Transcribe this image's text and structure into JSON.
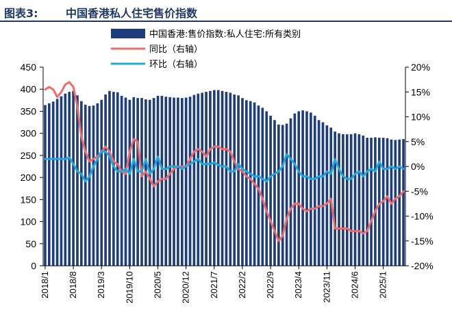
{
  "figure": {
    "label": "图表3:",
    "title": "中国香港私人住宅售价指数"
  },
  "chart_data": {
    "type": "bar",
    "x": [
      "2018/1",
      "2018/2",
      "2018/3",
      "2018/4",
      "2018/5",
      "2018/6",
      "2018/7",
      "2018/8",
      "2018/9",
      "2018/10",
      "2018/11",
      "2018/12",
      "2019/1",
      "2019/2",
      "2019/3",
      "2019/4",
      "2019/5",
      "2019/6",
      "2019/7",
      "2019/8",
      "2019/9",
      "2019/10",
      "2019/11",
      "2019/12",
      "2020/1",
      "2020/2",
      "2020/3",
      "2020/4",
      "2020/5",
      "2020/6",
      "2020/7",
      "2020/8",
      "2020/9",
      "2020/10",
      "2020/11",
      "2020/12",
      "2021/1",
      "2021/2",
      "2021/3",
      "2021/4",
      "2021/5",
      "2021/6",
      "2021/7",
      "2021/8",
      "2021/9",
      "2021/10",
      "2021/11",
      "2021/12",
      "2022/1",
      "2022/2",
      "2022/3",
      "2022/4",
      "2022/5",
      "2022/6",
      "2022/7",
      "2022/8",
      "2022/9",
      "2022/10",
      "2022/11",
      "2022/12",
      "2023/1",
      "2023/2",
      "2023/3",
      "2023/4",
      "2023/5",
      "2023/6",
      "2023/7",
      "2023/8",
      "2023/9",
      "2023/10",
      "2023/11",
      "2023/12",
      "2024/1",
      "2024/2",
      "2024/3",
      "2024/4",
      "2024/5",
      "2024/6",
      "2024/7",
      "2024/8",
      "2024/9",
      "2024/10",
      "2024/11",
      "2024/12",
      "2025/1",
      "2025/2",
      "2025/3",
      "2025/4",
      "2025/5",
      "2025/6"
    ],
    "xtick_labels": [
      "2018/1",
      "2018/8",
      "2019/3",
      "2019/10",
      "2020/5",
      "2020/12",
      "2021/7",
      "2022/2",
      "2022/9",
      "2023/4",
      "2023/11",
      "2024/6",
      "2025/1"
    ],
    "series": [
      {
        "name": "中国香港:售价指数:私人住宅:所有类别",
        "axis": "left",
        "color": "#1f3d7a",
        "values": [
          364,
          368,
          372,
          378,
          384,
          390,
          394,
          396,
          386,
          373,
          365,
          362,
          363,
          368,
          376,
          388,
          396,
          394,
          393,
          385,
          381,
          376,
          382,
          380,
          380,
          377,
          376,
          380,
          385,
          385,
          383,
          382,
          381,
          381,
          380,
          381,
          383,
          387,
          390,
          392,
          394,
          396,
          398,
          398,
          396,
          394,
          392,
          388,
          386,
          380,
          375,
          373,
          370,
          363,
          358,
          350,
          340,
          330,
          320,
          319,
          322,
          334,
          345,
          350,
          352,
          350,
          347,
          340,
          330,
          325,
          318,
          313,
          304,
          300,
          298,
          298,
          298,
          300,
          298,
          295,
          290,
          290,
          291,
          290,
          290,
          289,
          286,
          285,
          286,
          287
        ]
      },
      {
        "name": "同比（右轴）",
        "axis": "right",
        "color": "#f06b6b",
        "values": [
          15.5,
          16,
          15.5,
          14,
          15,
          16.5,
          17,
          16,
          12,
          6,
          3,
          1,
          1.5,
          2,
          3,
          4,
          3,
          1,
          0.5,
          -1,
          -1.5,
          3,
          5.5,
          5,
          -2,
          -1,
          -2.5,
          -4,
          -3,
          -2.5,
          -2.5,
          -1.5,
          -0.5,
          0,
          0,
          0,
          1.5,
          3,
          3.5,
          3,
          2,
          3.5,
          4,
          4,
          3.5,
          3.5,
          3,
          1,
          -0.5,
          -1,
          -2,
          -2.5,
          -3.5,
          -4.5,
          -6.5,
          -9,
          -11,
          -13,
          -15,
          -14,
          -10.5,
          -8.5,
          -7.5,
          -7.5,
          -8.5,
          -9,
          -8.5,
          -8.5,
          -8,
          -8,
          -7.5,
          -6.5,
          -12.5,
          -12.5,
          -12.5,
          -12.5,
          -13,
          -13,
          -13,
          -13.5,
          -13,
          -11,
          -9,
          -7.5,
          -7,
          -6,
          -7.5,
          -6.5,
          -6,
          -5
        ]
      },
      {
        "name": "环比（右轴）",
        "axis": "right",
        "color": "#1fa8e0",
        "values": [
          1.5,
          1.5,
          1.5,
          1.5,
          1.5,
          1.5,
          1.8,
          0.5,
          -1,
          -1.5,
          -3,
          -2,
          0,
          1.5,
          3,
          3,
          2,
          0,
          -1,
          -1,
          -0.5,
          -1.5,
          1.5,
          -1,
          -1,
          1.5,
          -1.5,
          -0.5,
          2,
          -0.5,
          -0.5,
          0,
          0,
          0,
          -0.5,
          0,
          0.5,
          1,
          1.5,
          0.5,
          0.5,
          0.5,
          0.8,
          0.3,
          0,
          0,
          -1,
          -1,
          0.5,
          -0.5,
          -1,
          -1.5,
          -2,
          -2,
          -2.5,
          -3,
          -2,
          -1.5,
          -1,
          0,
          2.5,
          1.5,
          0.5,
          -1,
          -2,
          -2,
          -2.5,
          -2.5,
          -2,
          -2,
          -1,
          -1.5,
          1.5,
          -0.5,
          -2,
          -2.5,
          -2.5,
          -1.5,
          -1,
          -2,
          -1,
          -0.5,
          -1,
          1,
          -0.5,
          -0.5,
          0,
          -0.5,
          0,
          -0.5
        ]
      }
    ],
    "left_axis": {
      "ylim": [
        0,
        450
      ],
      "ticks": [
        "0",
        "50",
        "100",
        "150",
        "200",
        "250",
        "300",
        "350",
        "400",
        "450"
      ]
    },
    "right_axis": {
      "ylim": [
        -20,
        20
      ],
      "ticks": [
        "-20%",
        "-15%",
        "-10%",
        "-5%",
        "0%",
        "5%",
        "10%",
        "15%",
        "20%"
      ]
    },
    "legend_placement": "top-center",
    "grid": false
  }
}
